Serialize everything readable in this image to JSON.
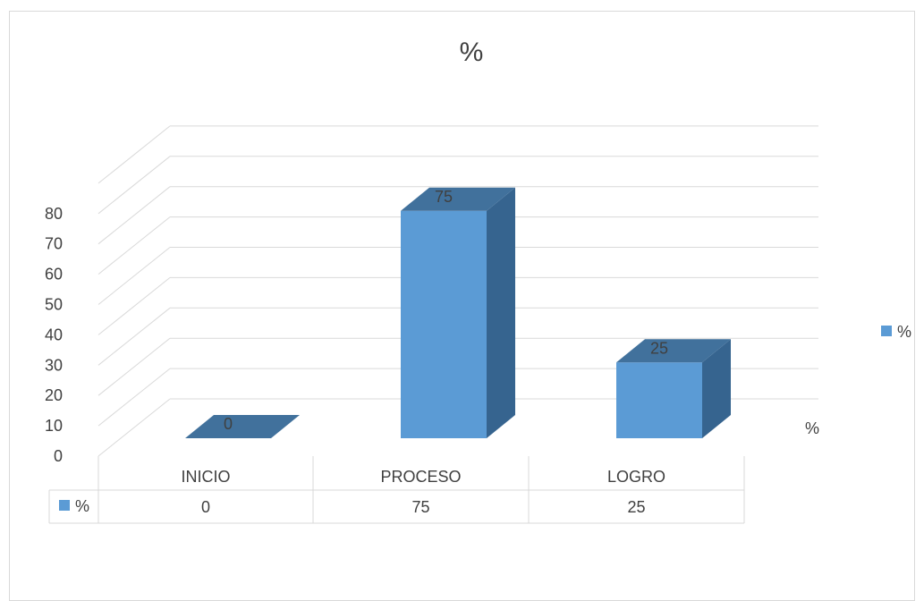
{
  "chart_data": {
    "type": "bar",
    "title": "%",
    "categories": [
      "INICIO",
      "PROCESO",
      "LOGRO"
    ],
    "series": [
      {
        "name": "%",
        "values": [
          0,
          75,
          25
        ]
      }
    ],
    "ylim": [
      0,
      80
    ],
    "yticks": [
      0,
      10,
      20,
      30,
      40,
      50,
      60,
      70,
      80
    ],
    "depth_axis_label": "%",
    "legend": {
      "position": "right",
      "entries": [
        "%"
      ]
    },
    "data_table": {
      "legend_label": "%",
      "values": [
        "0",
        "75",
        "25"
      ]
    },
    "grid": true,
    "three_d": true,
    "colors": {
      "front": "#5b9bd5",
      "top": "#41719c",
      "side": "#36648f",
      "grid": "#d9d9d9",
      "text": "#404040"
    }
  }
}
